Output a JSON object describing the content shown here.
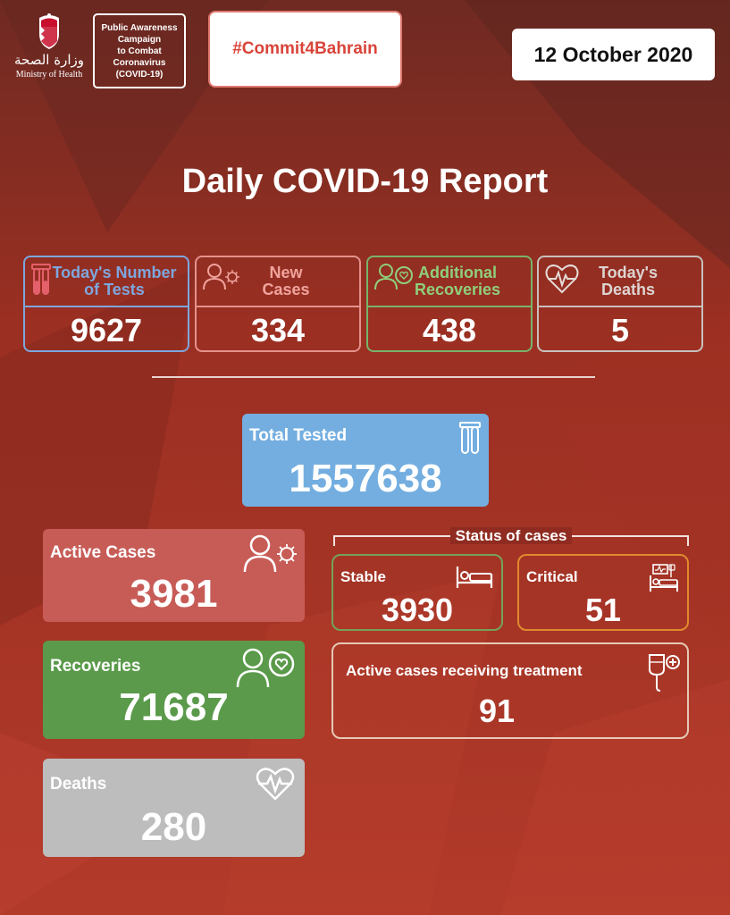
{
  "header": {
    "moh_arabic": "وزارة الصحة",
    "moh_english": "Ministry of Health",
    "campaign_text": "Public Awareness\nCampaign\nto Combat\nCoronavirus\n(COVID-19)",
    "hashtag": "#Commit4Bahrain",
    "date": "12 October 2020"
  },
  "title": "Daily COVID-19 Report",
  "daily": {
    "tests": {
      "label": "Today's Number\nof Tests",
      "value": "9627",
      "color": "#7ea6dd"
    },
    "new_cases": {
      "label": "New\nCases",
      "value": "334",
      "color": "#e5928c"
    },
    "recoveries": {
      "label": "Additional\nRecoveries",
      "value": "438",
      "color": "#79b36a"
    },
    "deaths": {
      "label": "Today's\nDeaths",
      "value": "5",
      "color": "#c8c0bd"
    }
  },
  "total_tested": {
    "label": "Total Tested",
    "value": "1557638",
    "color": "#74aee0"
  },
  "active_cases": {
    "label": "Active Cases",
    "value": "3981",
    "color": "#c75c57"
  },
  "total_recoveries": {
    "label": "Recoveries",
    "value": "71687",
    "color": "#5a9a4a"
  },
  "total_deaths": {
    "label": "Deaths",
    "value": "280",
    "color": "#bdbdbd"
  },
  "status_of_cases": {
    "title": "Status of cases",
    "stable": {
      "label": "Stable",
      "value": "3930",
      "color": "#74a35a"
    },
    "critical": {
      "label": "Critical",
      "value": "51",
      "color": "#e08a2e"
    },
    "treatment": {
      "label": "Active cases receiving treatment",
      "value": "91",
      "color": "#e6c9b5"
    }
  },
  "icons": [
    "test-tubes-icon",
    "person-virus-icon",
    "person-heart-icon",
    "heartbeat-icon",
    "hospital-bed-icon",
    "critical-bed-icon",
    "iv-drip-icon",
    "bahrain-emblem-icon"
  ]
}
